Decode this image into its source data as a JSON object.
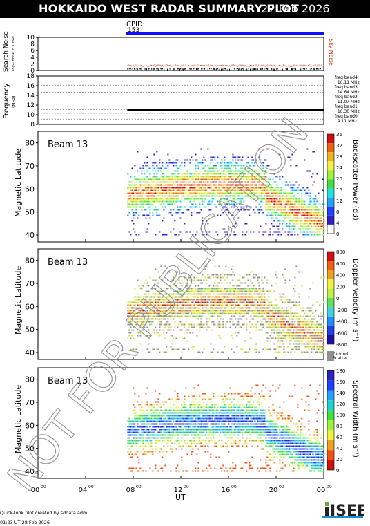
{
  "header": {
    "title": "HOKKAIDO WEST RADAR SUMMARY PLOT",
    "date": "27 Feb 2026"
  },
  "cpid": {
    "label": "CPID:",
    "value": "153"
  },
  "noise_panel": {
    "ylabel": "Search Noise",
    "ylabel_sub": "log₁₀(noise in 10⁶W)",
    "yticks": [
      "10",
      "8",
      "6",
      "4",
      "2",
      "0"
    ],
    "right_label": "Sky Noise"
  },
  "freq_panel": {
    "ylabel": "Frequency",
    "ylabel_sub": "(MHz)",
    "yticks": [
      "18",
      "16",
      "14",
      "12",
      "10",
      "8"
    ],
    "bands": [
      {
        "name": "freq band4:",
        "value": "16.11 MHz"
      },
      {
        "name": "freq band3:",
        "value": "14.64 MHz"
      },
      {
        "name": "freq band2:",
        "value": "11.07 MHz"
      },
      {
        "name": "freq band1:",
        "value": "10.30 MHz"
      },
      {
        "name": "freq band0:",
        "value": "9.11 MHz"
      }
    ]
  },
  "panels": [
    {
      "beam": "Beam 13",
      "ylabel": "Magnetic Latitude",
      "yticks": [
        "80",
        "70",
        "60",
        "50",
        "40"
      ],
      "cbar_label": "Backscatter Power (dB)",
      "cbar_ticks": [
        "36",
        "32",
        "28",
        "24",
        "20",
        "16",
        "12",
        "8",
        "4",
        "0"
      ]
    },
    {
      "beam": "Beam 13",
      "ylabel": "Magnetic Latitude",
      "yticks": [
        "80",
        "70",
        "60",
        "50",
        "40"
      ],
      "cbar_label": "Doppler Velocity (m s⁻¹)",
      "cbar_ticks": [
        "800",
        "600",
        "400",
        "200",
        "0",
        "-200",
        "-400",
        "-600",
        "-800"
      ],
      "ground_label_1": "Ground",
      "ground_label_2": "Scatter"
    },
    {
      "beam": "Beam 13",
      "ylabel": "Magnetic Latitude",
      "yticks": [
        "80",
        "70",
        "60",
        "50",
        "40"
      ],
      "cbar_label": "Spectral Width (m s⁻¹)",
      "cbar_ticks": [
        "180",
        "160",
        "140",
        "120",
        "100",
        "80",
        "60",
        "40",
        "20",
        "0"
      ]
    }
  ],
  "xaxis": {
    "label": "UT",
    "ticks": [
      "00",
      "04",
      "08",
      "12",
      "16",
      "20",
      "00"
    ],
    "tick_sup": "00"
  },
  "watermark": "NOT FOR PUBLICATION",
  "footer": {
    "line1": "Quick-look plot created by sddata.adm",
    "line2": "01:23 UT 28 Feb 2026",
    "logo": "ISEE"
  },
  "chart_data": {
    "type": "heatmap",
    "x_range_hours": [
      0,
      24
    ],
    "y_range_mlat": [
      37,
      85
    ],
    "data_start_hour": 7.5,
    "panels": [
      "Backscatter Power",
      "Doppler Velocity",
      "Spectral Width"
    ],
    "power_range_db": [
      0,
      36
    ],
    "velocity_range": [
      -800,
      800
    ],
    "width_range": [
      0,
      180
    ],
    "noise_range": [
      0,
      10
    ],
    "freq_range_mhz": [
      8,
      18
    ],
    "operating_frequency_mhz": 11
  }
}
